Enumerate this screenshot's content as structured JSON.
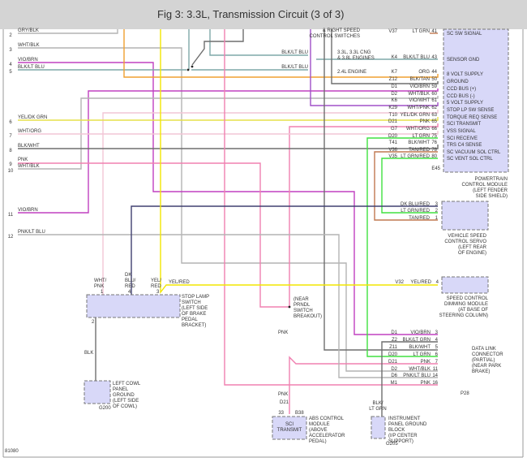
{
  "header": {
    "title": "Fig 3: 3.3L, Transmission Circuit (3 of 3)"
  },
  "figure_id": "81080",
  "wire_colors": {
    "orange": "#f0a030",
    "yellow": "#e6e04a",
    "yel_red": "#f2e600",
    "violet": "#c040c0",
    "vio_wht": "#a050c8",
    "pink": "#f080b0",
    "lt_pink": "#f2c6d6",
    "gray": "#b4b4b4",
    "dark": "#6e6e6e",
    "teal": "#7fa8a8",
    "green": "#40e040",
    "tan": "#c07850",
    "dk_blu": "#404070"
  },
  "left_connector": {
    "pins": [
      {
        "pin": "2",
        "color": "GRY/BLK"
      },
      {
        "pin": "3",
        "color": "WHT/BLK"
      },
      {
        "pin": "4",
        "color": "VIO/BRN"
      },
      {
        "pin": "5",
        "color": "BLK/LT BLU"
      },
      {
        "pin": "6",
        "color": "YEL/DK GRN"
      },
      {
        "pin": "7",
        "color": "WHT/ORG"
      },
      {
        "pin": "8",
        "color": "BLK/WHT"
      },
      {
        "pin": "9",
        "color": "PNK"
      },
      {
        "pin": "10",
        "color": "WHT/BLK"
      },
      {
        "pin": "11",
        "color": "VIO/BRN"
      },
      {
        "pin": "12",
        "color": "PNK/LT BLU"
      }
    ]
  },
  "pcm": {
    "name": [
      "POWERTRAIN",
      "CONTROL MODULE",
      "(LEFT FENDER",
      "SIDE SHIELD)"
    ],
    "connector": "E45",
    "pins": [
      {
        "code": "V37",
        "color": "LT GRN",
        "pin": "41",
        "signal": "SC SW SIGNAL"
      },
      {
        "code": "K4",
        "color": "BLK/LT BLU",
        "pin": "43",
        "signal": "SENSOR GND"
      },
      {
        "code": "K7",
        "color": "ORG",
        "pin": "44",
        "signal": "8 VOLT SUPPLY"
      },
      {
        "code": "Z12",
        "color": "BLK/TAN",
        "pin": "50",
        "signal": "GROUND"
      },
      {
        "code": "D1",
        "color": "VIO/BRN",
        "pin": "59",
        "signal": "CCD BUS (+)"
      },
      {
        "code": "D2",
        "color": "WHT/BLK",
        "pin": "60",
        "signal": "CCD BUS (-)"
      },
      {
        "code": "K6",
        "color": "VIO/WHT",
        "pin": "61",
        "signal": "5 VOLT SUPPLY"
      },
      {
        "code": "K29",
        "color": "WHT/PNK",
        "pin": "62",
        "signal": "STOP LP SW SENSE"
      },
      {
        "code": "T10",
        "color": "YEL/DK GRN",
        "pin": "63",
        "signal": "TORQUE REQ SENSE"
      },
      {
        "code": "D21",
        "color": "PNK",
        "pin": "65",
        "signal": "SCI TRANSMIT"
      },
      {
        "code": "G7",
        "color": "WHT/ORG",
        "pin": "66",
        "signal": "VSS SIGNAL"
      },
      {
        "code": "D20",
        "color": "LT GRN",
        "pin": "75",
        "signal": "SCI RECEIVE"
      },
      {
        "code": "T41",
        "color": "BLK/WHT",
        "pin": "76",
        "signal": "TRS C4 SENSE"
      },
      {
        "code": "V36",
        "color": "TAN/RED",
        "pin": "78",
        "signal": "SC VACUUM SOL CTRL"
      },
      {
        "code": "V35",
        "color": "LT GRN/RED",
        "pin": "80",
        "signal": "SC VENT SOL CTRL"
      }
    ]
  },
  "speed_switch_note": [
    "& RIGHT SPEED",
    "CONTROL SWITCHES"
  ],
  "engine_notes": {
    "a": [
      "3.3L, 3.3L CNG",
      "& 3.8L ENGINES"
    ],
    "b": "2.4L ENGINE",
    "wire_a": "BLK/LT BLU",
    "wire_b": "BLK/LT BLU"
  },
  "servo": {
    "name": [
      "VEHICLE SPEED",
      "CONTROL SERVO",
      "(LEFT REAR",
      "OF ENGINE)"
    ],
    "pins": [
      {
        "color": "DK BLU/RED",
        "pin": "3"
      },
      {
        "color": "LT GRN/RED",
        "pin": "2"
      },
      {
        "color": "TAN/RED",
        "pin": "1"
      }
    ]
  },
  "dimming": {
    "name": [
      "SPEED CONTROL",
      "DIMMING MODULE",
      "(AT BASE OF",
      "STEERING COLUMN)"
    ],
    "code": "V32",
    "color": "YEL/RED",
    "pin": "4"
  },
  "stop_lamp": {
    "name": [
      "STOP LAMP",
      "SWITCH",
      "(LEFT SIDE",
      "OF BRAKE",
      "PEDAL",
      "BRACKET)"
    ],
    "pin1": {
      "pin": "1",
      "color": [
        "WHT/",
        "PNK"
      ]
    },
    "pin4": {
      "pin": "4",
      "color": [
        "DK",
        "BLU/",
        "RED"
      ]
    },
    "pin3": {
      "pin": "3",
      "color": [
        "YEL/",
        "RED"
      ]
    },
    "pin2": {
      "pin": "2",
      "color": "BLK"
    },
    "out_wire": "YEL/RED"
  },
  "cowl_ground": {
    "name": [
      "LEFT COWL",
      "PANEL",
      "GROUND",
      "(LEFT SIDE",
      "OF COWL)"
    ],
    "id": "G200"
  },
  "prndl": {
    "note": [
      "(NEAR",
      "PRNDL",
      "SWITCH",
      "BREAKOUT)"
    ],
    "wire": "PNK",
    "wire2": "PNK",
    "code": "D21"
  },
  "abs": {
    "name": [
      "ABS CONTROL",
      "MODULE",
      "(ABOVE",
      "ACCELERATOR",
      "PEDAL)"
    ],
    "pin": "33",
    "connector": "B38",
    "signal": [
      "SCI",
      "TRANSMIT"
    ]
  },
  "ip_ground": {
    "name": [
      "INSTRUMENT",
      "PANEL GROUND",
      "BLOCK",
      "(I/P CENTER",
      "SUPPORT)"
    ],
    "id": "G205",
    "wire": [
      "BLK/",
      "LT GRN"
    ]
  },
  "dlc": {
    "name": [
      "DATA LINK",
      "CONNECTOR",
      "(PARTIAL)",
      "(NEAR PARK",
      "BRAKE)"
    ],
    "connector": "P28",
    "pins": [
      {
        "code": "D1",
        "color": "VIO/BRN",
        "pin": "3"
      },
      {
        "code": "Z2",
        "color": "BLK/LT GRN",
        "pin": "4"
      },
      {
        "code": "Z11",
        "color": "BLK/WHT",
        "pin": "5"
      },
      {
        "code": "D20",
        "color": "LT GRN",
        "pin": "6"
      },
      {
        "code": "D21",
        "color": "PNK",
        "pin": "7"
      },
      {
        "code": "D2",
        "color": "WHT/BLK",
        "pin": "11"
      },
      {
        "code": "D6",
        "color": "PNK/LT BLU",
        "pin": "14"
      },
      {
        "code": "M1",
        "color": "PNK",
        "pin": "16"
      }
    ]
  }
}
